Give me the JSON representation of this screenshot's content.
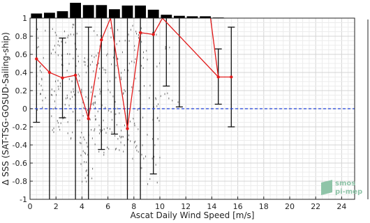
{
  "chart_data": {
    "type": "scatter",
    "title": "",
    "xlabel": "Ascat Daily Wind Speed [m/s]",
    "ylabel": "Δ SSS (SAT-TSG-GOSUD-Sailing-ship)",
    "xlim": [
      0,
      25
    ],
    "ylim": [
      -1,
      1
    ],
    "xticks": [
      "0",
      "2",
      "4",
      "6",
      "8",
      "10",
      "12",
      "14",
      "16",
      "18",
      "20",
      "22",
      "24"
    ],
    "yticks": [
      "-1",
      "-0.8",
      "-0.6",
      "-0.4",
      "-0.2",
      "0",
      "0.2",
      "0.4",
      "0.6",
      "0.8",
      "1"
    ],
    "grid": true,
    "histogram": {
      "bin_centers": [
        0.5,
        1.5,
        2.5,
        3.5,
        4.5,
        5.5,
        6.5,
        7.5,
        8.5,
        9.5,
        10.5,
        11.5,
        12.5,
        13.5,
        14.5
      ],
      "relative_heights": [
        0.3,
        0.35,
        0.45,
        1.0,
        0.85,
        0.85,
        0.58,
        0.82,
        0.82,
        0.55,
        0.22,
        0.15,
        0.12,
        0.12,
        0.04
      ]
    },
    "mean_series": {
      "color": "#e21a1a",
      "x": [
        0.5,
        1.5,
        2.5,
        3.5,
        4.5,
        5.5,
        6.2,
        7.5,
        8.5,
        9.5,
        10.2,
        14.5,
        15.5
      ],
      "y": [
        0.55,
        0.4,
        0.34,
        0.37,
        -0.11,
        0.76,
        1.05,
        -0.22,
        0.84,
        0.82,
        1.05,
        0.35,
        0.35
      ],
      "markers_x": [
        0.5,
        1.5,
        2.5,
        3.5,
        4.5,
        5.5,
        7.5,
        8.5,
        9.5,
        14.5,
        15.5
      ],
      "markers_y": [
        0.55,
        0.4,
        0.34,
        0.37,
        -0.11,
        0.76,
        -0.22,
        0.84,
        0.82,
        0.35,
        0.35
      ],
      "extra_segment": {
        "x": [
          13.9,
          14.5
        ],
        "y": [
          1.05,
          0.35
        ]
      }
    },
    "error_bars": [
      {
        "x": 0.5,
        "low": -0.15,
        "high": 1.0
      },
      {
        "x": 1.5,
        "low": -1.0,
        "high": 1.0
      },
      {
        "x": 2.5,
        "low": -0.1,
        "high": 0.78
      },
      {
        "x": 3.5,
        "low": -1.0,
        "high": 1.0
      },
      {
        "x": 4.5,
        "low": -1.0,
        "high": 0.9
      },
      {
        "x": 5.5,
        "low": -0.45,
        "high": 1.0
      },
      {
        "x": 6.5,
        "low": -0.28,
        "high": 1.0
      },
      {
        "x": 7.5,
        "low": -1.0,
        "high": 1.0
      },
      {
        "x": 8.5,
        "low": -1.0,
        "high": 1.0
      },
      {
        "x": 9.5,
        "low": -0.72,
        "high": 1.0
      },
      {
        "x": 10.5,
        "low": 0.25,
        "high": 1.0
      },
      {
        "x": 11.5,
        "low": 0.02,
        "high": 1.0
      },
      {
        "x": 14.5,
        "low": 0.05,
        "high": 0.66
      },
      {
        "x": 15.5,
        "low": -0.2,
        "high": 0.9
      }
    ],
    "scatter_clusters": [
      {
        "x0": 0.4,
        "x1": 1.2,
        "y0": -0.05,
        "y1": 0.9,
        "n": 26
      },
      {
        "x0": 1.6,
        "x1": 2.8,
        "y0": -0.25,
        "y1": 0.9,
        "n": 46
      },
      {
        "x0": 2.8,
        "x1": 3.8,
        "y0": -0.35,
        "y1": 0.95,
        "n": 44
      },
      {
        "x0": 3.8,
        "x1": 4.9,
        "y0": -0.8,
        "y1": 0.6,
        "n": 60
      },
      {
        "x0": 4.9,
        "x1": 5.9,
        "y0": -0.6,
        "y1": 0.9,
        "n": 50
      },
      {
        "x0": 5.9,
        "x1": 6.9,
        "y0": -0.45,
        "y1": 0.9,
        "n": 40
      },
      {
        "x0": 6.9,
        "x1": 7.9,
        "y0": -0.55,
        "y1": 0.95,
        "n": 32
      },
      {
        "x0": 7.9,
        "x1": 8.9,
        "y0": -0.65,
        "y1": 0.95,
        "n": 40
      },
      {
        "x0": 8.9,
        "x1": 10.0,
        "y0": -0.85,
        "y1": 0.95,
        "n": 28
      },
      {
        "x0": 10.0,
        "x1": 11.5,
        "y0": 0.0,
        "y1": 0.7,
        "n": 10
      }
    ],
    "zero_line": {
      "y": 0,
      "color": "#1f3fd6",
      "style": "dashed"
    }
  },
  "watermark": {
    "line1": "smos",
    "line2": "pi-mep"
  }
}
